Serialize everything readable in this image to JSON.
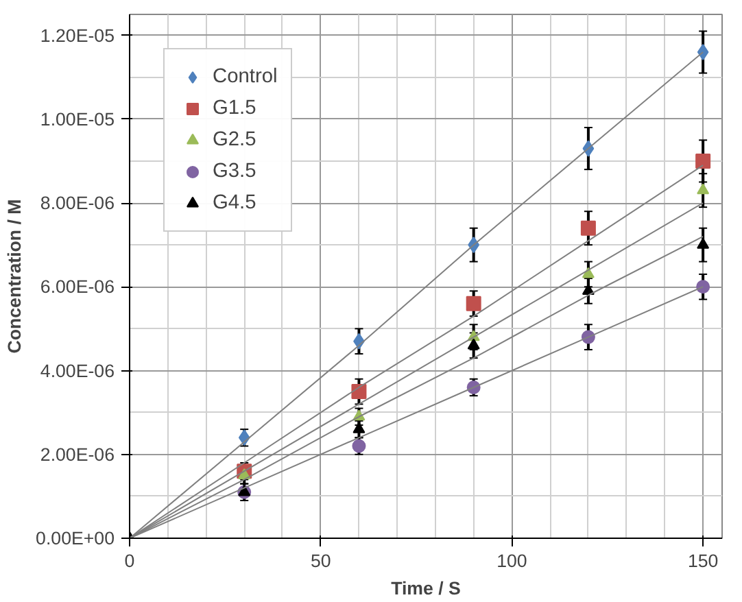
{
  "chart_data": {
    "type": "scatter",
    "xlabel": "Time / S",
    "ylabel": "Concentration / M",
    "x": [
      0,
      30,
      60,
      90,
      120,
      150
    ],
    "series": [
      {
        "name": "Control",
        "color": "#4f81bd",
        "marker": "diamond",
        "values": [
          null,
          2.4e-06,
          4.7e-06,
          7e-06,
          9.3e-06,
          1.16e-05
        ],
        "errors": [
          null,
          2e-07,
          3e-07,
          4e-07,
          5e-07,
          5e-07
        ]
      },
      {
        "name": "G1.5",
        "color": "#c0504d",
        "marker": "square",
        "values": [
          null,
          1.6e-06,
          3.5e-06,
          5.6e-06,
          7.4e-06,
          9e-06
        ],
        "errors": [
          null,
          2e-07,
          3e-07,
          3e-07,
          4e-07,
          5e-07
        ]
      },
      {
        "name": "G2.5",
        "color": "#9bbb59",
        "marker": "triangle",
        "values": [
          null,
          1.5e-06,
          2.9e-06,
          4.8e-06,
          6.3e-06,
          8.3e-06
        ],
        "errors": [
          null,
          2e-07,
          2e-07,
          3e-07,
          3e-07,
          4e-07
        ]
      },
      {
        "name": "G3.5",
        "color": "#8064a2",
        "marker": "circle",
        "values": [
          null,
          1.1e-06,
          2.2e-06,
          3.6e-06,
          4.8e-06,
          6e-06
        ],
        "errors": [
          null,
          2e-07,
          2e-07,
          2e-07,
          3e-07,
          3e-07
        ]
      },
      {
        "name": "G4.5",
        "color": "#000000",
        "marker": "triangle",
        "values": [
          0,
          1.1e-06,
          2.6e-06,
          4.6e-06,
          5.9e-06,
          7e-06
        ],
        "errors": [
          null,
          1e-07,
          2e-07,
          3e-07,
          3e-07,
          4e-07
        ]
      },
      {
        "type": "line",
        "color": "#808080",
        "values": [
          0,
          2.3e-06,
          4.6e-06,
          7e-06,
          9.3e-06,
          1.16e-05
        ]
      },
      {
        "type": "line",
        "color": "#808080",
        "values": [
          0,
          1.8e-06,
          3.6e-06,
          5.3e-06,
          7.1e-06,
          8.9e-06
        ]
      },
      {
        "type": "line",
        "color": "#808080",
        "values": [
          0,
          1.6e-06,
          3.2e-06,
          4.8e-06,
          6.4e-06,
          8e-06
        ]
      },
      {
        "type": "line",
        "color": "#808080",
        "values": [
          0,
          1.2e-06,
          2.4e-06,
          3.6e-06,
          4.8e-06,
          6e-06
        ]
      },
      {
        "type": "line",
        "color": "#808080",
        "values": [
          0,
          1.4e-06,
          2.9e-06,
          4.3e-06,
          5.8e-06,
          7.2e-06
        ]
      }
    ],
    "xlim": [
      0,
      155
    ],
    "xticks": [
      0,
      50,
      100,
      150
    ],
    "ylim": [
      0,
      1.25e-05
    ],
    "yticks": [
      {
        "value": 0,
        "label": "0.00E+00"
      },
      {
        "value": 2e-06,
        "label": "2.00E-06"
      },
      {
        "value": 4e-06,
        "label": "4.00E-06"
      },
      {
        "value": 6e-06,
        "label": "6.00E-06"
      },
      {
        "value": 8e-06,
        "label": "8.00E-06"
      },
      {
        "value": 1e-05,
        "label": "1.00E-05"
      },
      {
        "value": 1.2e-05,
        "label": "1.20E-05"
      }
    ],
    "grid": true,
    "legend": "top left"
  }
}
